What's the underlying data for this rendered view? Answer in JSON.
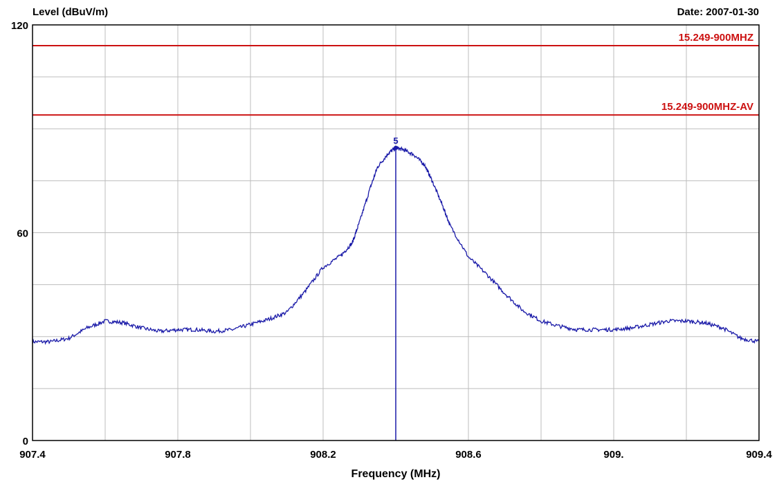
{
  "colors": {
    "trace": "#1a1aa8",
    "limit": "#cc1111",
    "grid": "#bdbdbd",
    "frame": "#000000"
  },
  "chart_data": {
    "type": "line",
    "ylabel": "Level (dBuV/m)",
    "xlabel": "Frequency (MHz)",
    "date_label": "Date: 2007-01-30",
    "xlim": [
      907.4,
      909.4
    ],
    "ylim": [
      0,
      120
    ],
    "x_tick_labels": [
      {
        "value": 907.4,
        "label": "907.4"
      },
      {
        "value": 907.8,
        "label": "907.8"
      },
      {
        "value": 908.2,
        "label": "908.2"
      },
      {
        "value": 908.6,
        "label": "908.6"
      },
      {
        "value": 909.0,
        "label": "909."
      },
      {
        "value": 909.4,
        "label": "909.4"
      }
    ],
    "y_tick_labels": [
      {
        "value": 0,
        "label": "0"
      },
      {
        "value": 60,
        "label": "60"
      },
      {
        "value": 120,
        "label": "120"
      }
    ],
    "x_gridlines": [
      907.6,
      907.8,
      908.0,
      908.2,
      908.4,
      908.6,
      908.8,
      909.0,
      909.2
    ],
    "y_gridlines": [
      15,
      30,
      45,
      60,
      75,
      90,
      105
    ],
    "grid": true,
    "limit_lines": [
      {
        "name": "15.249-900MHZ",
        "value": 114
      },
      {
        "name": "15.249-900MHZ-AV",
        "value": 94
      }
    ],
    "marker": {
      "label": "5",
      "x": 908.4,
      "y": 84.5
    },
    "series": [
      {
        "x": [
          907.4,
          907.45,
          907.5,
          907.55,
          907.6,
          907.65,
          907.7,
          907.75,
          907.8,
          907.85,
          907.9,
          907.95,
          908.0,
          908.05,
          908.1,
          908.15,
          908.2,
          908.25,
          908.28,
          908.3,
          908.33,
          908.35,
          908.38,
          908.4,
          908.42,
          908.45,
          908.48,
          908.5,
          908.53,
          908.55,
          908.6,
          908.65,
          908.7,
          908.75,
          908.8,
          908.85,
          908.9,
          908.95,
          909.0,
          909.05,
          909.1,
          909.15,
          909.2,
          909.25,
          909.3,
          909.35,
          909.4
        ],
        "y": [
          28.5,
          28.5,
          29.5,
          32.5,
          34.5,
          34,
          32.5,
          31.5,
          32,
          32,
          31.5,
          32,
          33.5,
          35,
          37,
          43,
          50,
          53.5,
          57,
          63,
          73,
          79,
          83,
          84.5,
          84,
          82.5,
          79.5,
          75,
          67.5,
          62,
          53,
          48,
          42.5,
          37.5,
          34.5,
          33,
          32,
          32,
          32,
          32.5,
          33.5,
          34.5,
          34.5,
          34,
          32.5,
          29.5,
          28.5
        ]
      }
    ]
  }
}
